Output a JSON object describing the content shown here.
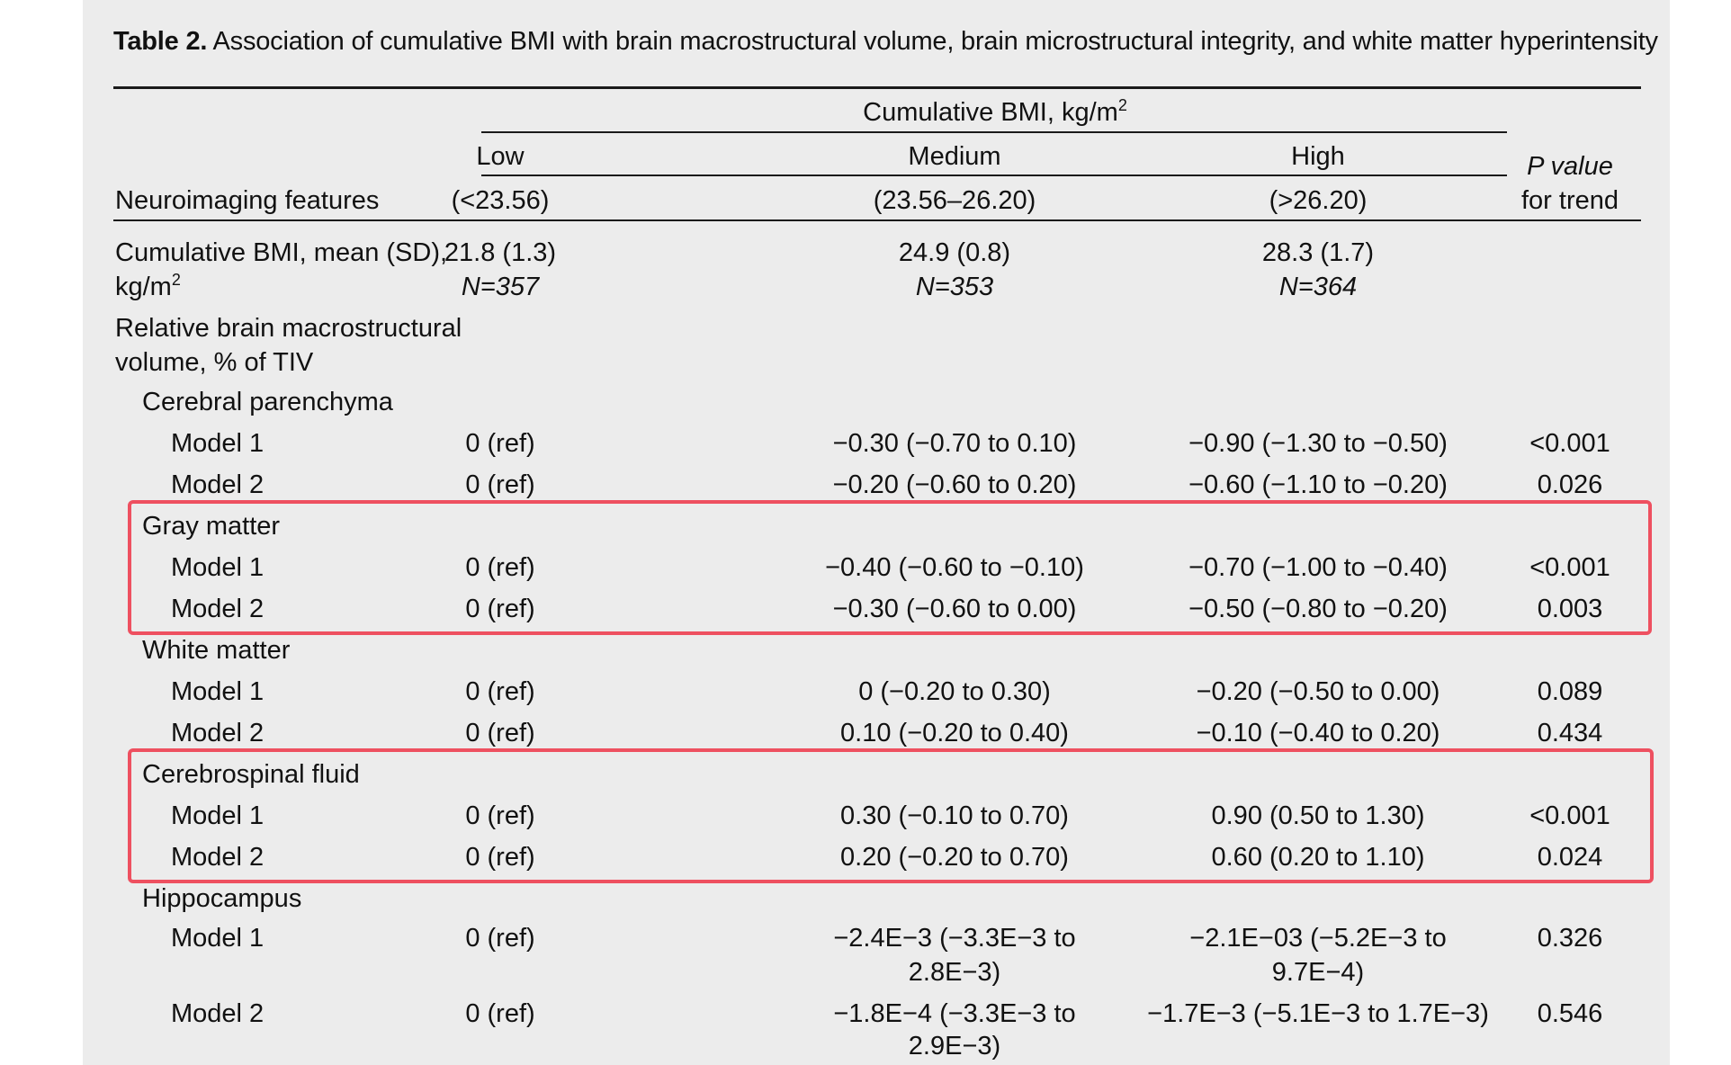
{
  "table": {
    "title_label": "Table 2.",
    "title_text": "Association of cumulative BMI with brain macrostructural volume, brain microstructural integrity, and white matter hyperintensity",
    "header": {
      "group_label": "Cumulative BMI, kg/m",
      "group_label_sup": "2",
      "row_header": "Neuroimaging features",
      "pvalue_line1": "P value",
      "pvalue_line2": "for trend",
      "columns": [
        {
          "name": "Low",
          "range": "(<23.56)"
        },
        {
          "name": "Medium",
          "range": "(23.56–26.20)"
        },
        {
          "name": "High",
          "range": "(>26.20)"
        }
      ]
    },
    "bmi_row": {
      "label_line1": "Cumulative BMI, mean (SD),",
      "label_line2": "kg/m",
      "label_sup": "2",
      "low_mean": "21.8 (1.3)",
      "low_n": "N=357",
      "medium_mean": "24.9 (0.8)",
      "medium_n": "N=353",
      "high_mean": "28.3 (1.7)",
      "high_n": "N=364"
    },
    "section_label_line1": "Relative brain macrostructural",
    "section_label_line2": "volume, % of TIV",
    "groups": {
      "cerebral": {
        "label": "Cerebral parenchyma",
        "m1": {
          "label": "Model 1",
          "low": "0 (ref)",
          "medium": "−0.30 (−0.70 to 0.10)",
          "high": "−0.90 (−1.30 to −0.50)",
          "p": "<0.001"
        },
        "m2": {
          "label": "Model 2",
          "low": "0 (ref)",
          "medium": "−0.20 (−0.60 to 0.20)",
          "high": "−0.60 (−1.10 to −0.20)",
          "p": "0.026"
        }
      },
      "gray": {
        "label": "Gray matter",
        "m1": {
          "label": "Model 1",
          "low": "0 (ref)",
          "medium": "−0.40 (−0.60 to −0.10)",
          "high": "−0.70 (−1.00 to −0.40)",
          "p": "<0.001"
        },
        "m2": {
          "label": "Model 2",
          "low": "0 (ref)",
          "medium": "−0.30 (−0.60 to 0.00)",
          "high": "−0.50 (−0.80 to −0.20)",
          "p": "0.003"
        }
      },
      "white": {
        "label": "White matter",
        "m1": {
          "label": "Model 1",
          "low": "0 (ref)",
          "medium": "0 (−0.20 to 0.30)",
          "high": "−0.20 (−0.50 to 0.00)",
          "p": "0.089"
        },
        "m2": {
          "label": "Model 2",
          "low": "0 (ref)",
          "medium": "0.10 (−0.20 to 0.40)",
          "high": "−0.10 (−0.40 to 0.20)",
          "p": "0.434"
        }
      },
      "csf": {
        "label": "Cerebrospinal fluid",
        "m1": {
          "label": "Model 1",
          "low": "0 (ref)",
          "medium": "0.30 (−0.10 to 0.70)",
          "high": "0.90 (0.50 to 1.30)",
          "p": "<0.001"
        },
        "m2": {
          "label": "Model 2",
          "low": "0 (ref)",
          "medium": "0.20 (−0.20 to 0.70)",
          "high": "0.60 (0.20 to 1.10)",
          "p": "0.024"
        }
      },
      "hippo": {
        "label": "Hippocampus",
        "m1": {
          "label": "Model 1",
          "low": "0 (ref)",
          "medium_line1": "−2.4E−3 (−3.3E−3 to",
          "medium_line2": "2.8E−3)",
          "high_line1": "−2.1E−03 (−5.2E−3 to",
          "high_line2": "9.7E−4)",
          "p": "0.326"
        },
        "m2": {
          "label": "Model 2",
          "low": "0 (ref)",
          "medium_line1": "−1.8E−4 (−3.3E−3 to",
          "medium_line2": "2.9E−3)",
          "high": "−1.7E−3 (−5.1E−3 to 1.7E−3)",
          "p": "0.546"
        }
      }
    },
    "highlight_color": "#ee5060"
  }
}
